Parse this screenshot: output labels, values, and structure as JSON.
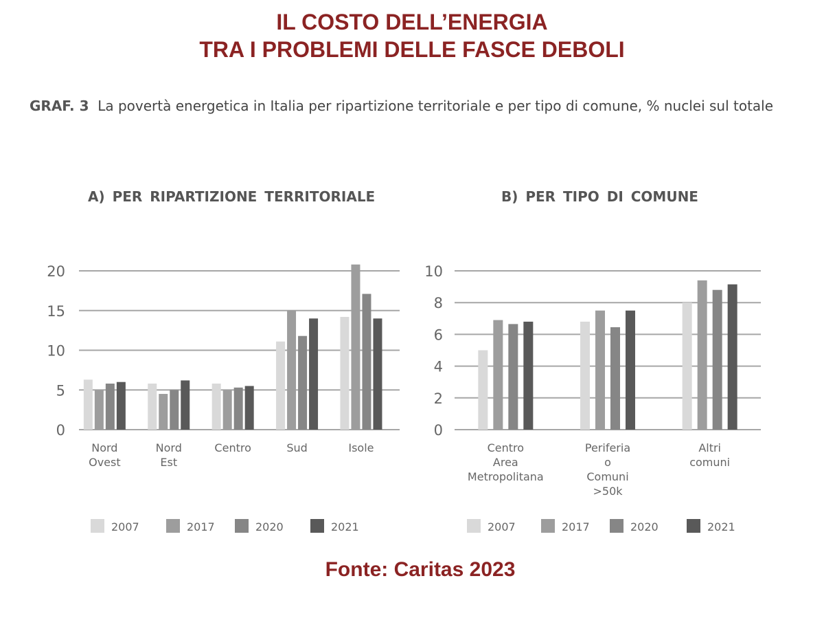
{
  "header": {
    "line1": "IL COSTO DELL’ENERGIA",
    "line2": "TRA I PROBLEMI DELLE FASCE DEBOLI"
  },
  "caption": {
    "label": "GRAF. 3",
    "text": "La povertà energetica in Italia per ripartizione territoriale e per tipo di comune, % nuclei sul totale"
  },
  "source": "Fonte: Caritas 2023",
  "colors": {
    "2007": "#d9d9d9",
    "2017": "#9d9d9d",
    "2020": "#868686",
    "2021": "#595959",
    "title": "#8b2323"
  },
  "chart_data": [
    {
      "type": "bar",
      "title": "A)   PER RIPARTIZIONE TERRITORIALE",
      "categories": [
        [
          "Nord",
          "Ovest"
        ],
        [
          "Nord",
          "Est"
        ],
        [
          "Centro"
        ],
        [
          "Sud"
        ],
        [
          "Isole"
        ]
      ],
      "ylim": [
        0,
        20
      ],
      "yticks": [
        0,
        5,
        10,
        15,
        20
      ],
      "grid": true,
      "legend": "bottom",
      "series": [
        {
          "name": "2007",
          "values": [
            6.3,
            5.8,
            5.8,
            11.1,
            14.2
          ]
        },
        {
          "name": "2017",
          "values": [
            5.0,
            4.5,
            5.0,
            15.0,
            20.8
          ]
        },
        {
          "name": "2020",
          "values": [
            5.8,
            5.0,
            5.3,
            11.8,
            17.1
          ]
        },
        {
          "name": "2021",
          "values": [
            6.0,
            6.2,
            5.5,
            14.0,
            14.0
          ]
        }
      ]
    },
    {
      "type": "bar",
      "title": "B)   PER TIPO DI COMUNE",
      "categories": [
        [
          "Centro",
          "Area",
          "Metropolitana"
        ],
        [
          "Periferia",
          "o",
          "Comuni",
          ">50k"
        ],
        [
          "Altri",
          "comuni"
        ]
      ],
      "ylim": [
        0,
        10
      ],
      "yticks": [
        0,
        2,
        4,
        6,
        8,
        10
      ],
      "grid": true,
      "legend": "bottom",
      "series": [
        {
          "name": "2007",
          "values": [
            5.0,
            6.8,
            8.0
          ]
        },
        {
          "name": "2017",
          "values": [
            6.9,
            7.5,
            9.4
          ]
        },
        {
          "name": "2020",
          "values": [
            6.65,
            6.45,
            8.8
          ]
        },
        {
          "name": "2021",
          "values": [
            6.8,
            7.5,
            9.15
          ]
        }
      ]
    }
  ]
}
